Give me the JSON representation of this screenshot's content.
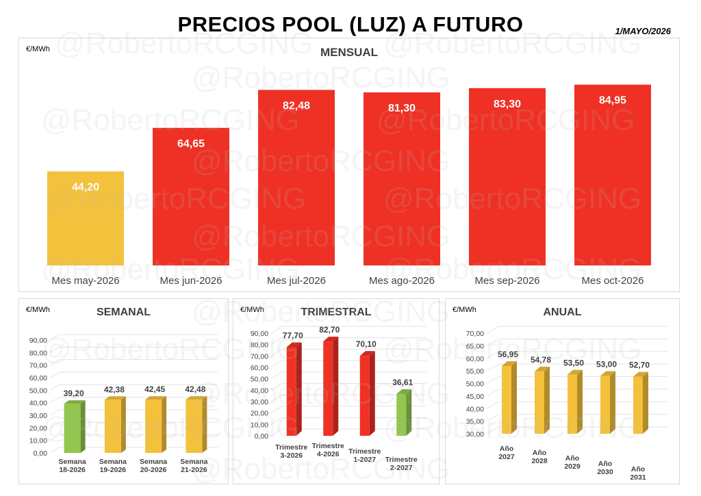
{
  "header": {
    "title": "PRECIOS POOL (LUZ) A FUTURO",
    "date": "1/MAYO/2026",
    "watermark": "@RobertoRCGING"
  },
  "colors": {
    "red": "#ee3124",
    "yellow": "#f4c13c",
    "green": "#92c64e",
    "axis_text": "#404040"
  },
  "chart_data": [
    {
      "id": "mensual",
      "type": "bar",
      "title": "MENSUAL",
      "unit": "€/MWh",
      "categories": [
        "Mes may-2026",
        "Mes jun-2026",
        "Mes jul-2026",
        "Mes ago-2026",
        "Mes sep-2026",
        "Mes oct-2026"
      ],
      "values": [
        44.2,
        64.65,
        82.48,
        81.3,
        83.3,
        84.95
      ],
      "labels": [
        "44,20",
        "64,65",
        "82,48",
        "81,30",
        "83,30",
        "84,95"
      ],
      "colors": [
        "yellow",
        "red",
        "red",
        "red",
        "red",
        "red"
      ],
      "ylim": [
        0,
        90
      ]
    },
    {
      "id": "semanal",
      "type": "bar",
      "title": "SEMANAL",
      "unit": "€/MWh",
      "categories": [
        [
          "Semana",
          "18-2026"
        ],
        [
          "Semana",
          "19-2026"
        ],
        [
          "Semana",
          "20-2026"
        ],
        [
          "Semana",
          "21-2026"
        ]
      ],
      "values": [
        39.2,
        42.38,
        42.45,
        42.48
      ],
      "labels": [
        "39,20",
        "42,38",
        "42,45",
        "42,48"
      ],
      "colors": [
        "green",
        "yellow",
        "yellow",
        "yellow"
      ],
      "ylim": [
        0,
        90
      ],
      "ticks": [
        "0,00",
        "10,00",
        "20,00",
        "30,00",
        "40,00",
        "50,00",
        "60,00",
        "70,00",
        "80,00",
        "90,00"
      ]
    },
    {
      "id": "trimestral",
      "type": "bar",
      "title": "TRIMESTRAL",
      "unit": "€/MWh",
      "categories": [
        [
          "Trimestre",
          "3-2026"
        ],
        [
          "Trimestre",
          "4-2026"
        ],
        [
          "Trimestre",
          "1-2027"
        ],
        [
          "Trimestre",
          "2-2027"
        ]
      ],
      "values": [
        77.7,
        82.7,
        70.1,
        36.61
      ],
      "labels": [
        "77,70",
        "82,70",
        "70,10",
        "36,61"
      ],
      "colors": [
        "red",
        "red",
        "red",
        "green"
      ],
      "ylim": [
        0,
        90
      ],
      "ticks": [
        "0,00",
        "10,00",
        "20,00",
        "30,00",
        "40,00",
        "50,00",
        "60,00",
        "70,00",
        "80,00",
        "90,00"
      ]
    },
    {
      "id": "anual",
      "type": "bar",
      "title": "ANUAL",
      "unit": "€/MWh",
      "categories": [
        [
          "Año",
          "2027"
        ],
        [
          "Año",
          "2028"
        ],
        [
          "Año",
          "2029"
        ],
        [
          "Año",
          "2030"
        ],
        [
          "Año",
          "2031"
        ]
      ],
      "values": [
        56.95,
        54.78,
        53.5,
        53.0,
        52.7
      ],
      "labels": [
        "56,95",
        "54,78",
        "53,50",
        "53,00",
        "52,70"
      ],
      "colors": [
        "yellow",
        "yellow",
        "yellow",
        "yellow",
        "yellow"
      ],
      "ylim": [
        30,
        70
      ],
      "ticks": [
        "30,00",
        "35,00",
        "40,00",
        "45,00",
        "50,00",
        "55,00",
        "60,00",
        "65,00",
        "70,00"
      ]
    }
  ]
}
